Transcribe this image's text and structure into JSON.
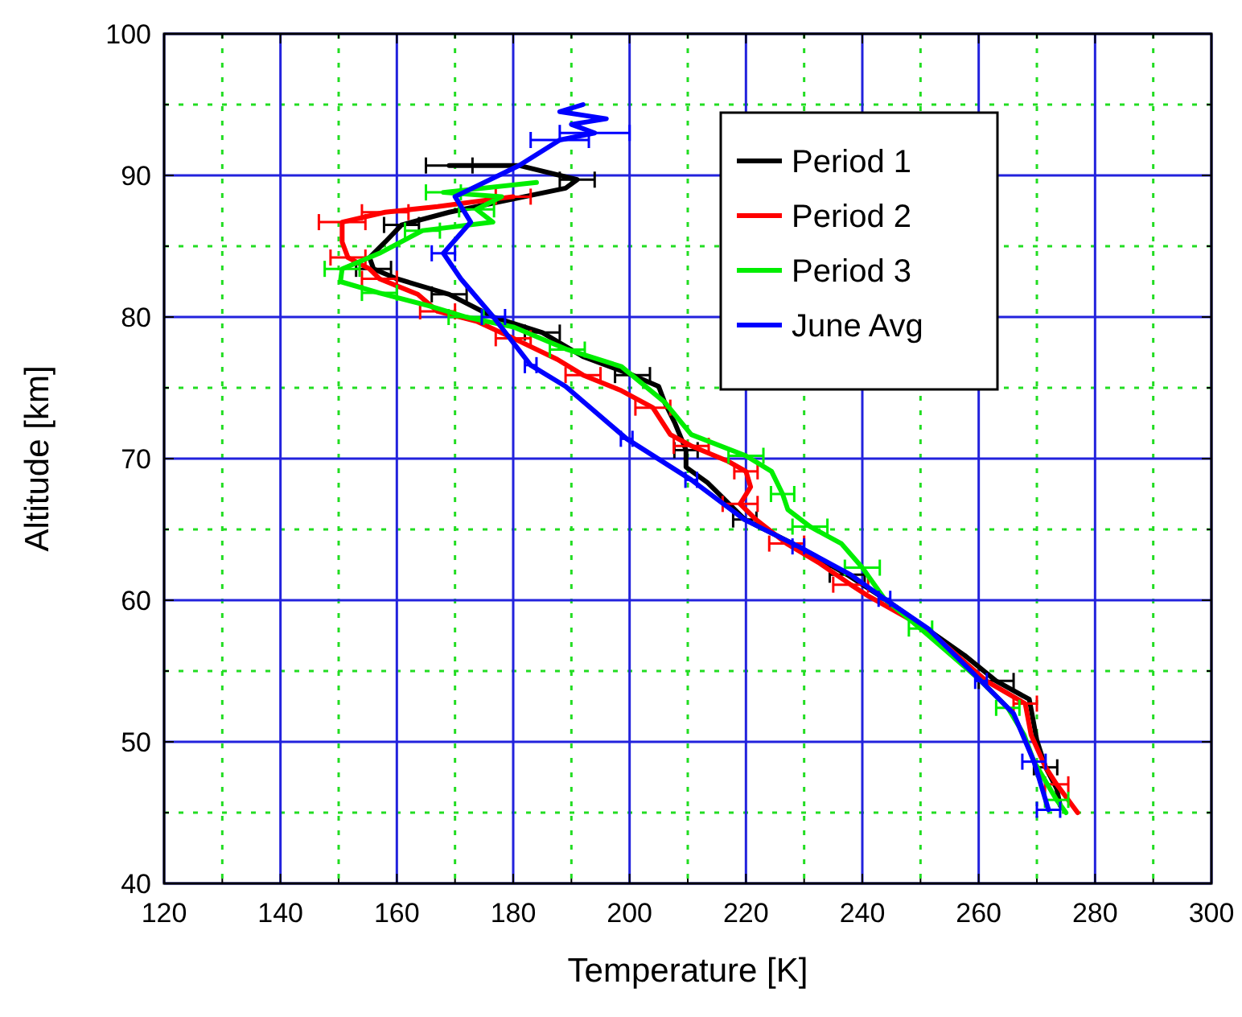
{
  "chart_data": {
    "type": "line",
    "xlabel": "Temperature [K]",
    "ylabel": "Altitude [km]",
    "xlim": [
      120,
      300
    ],
    "xticks": [
      120,
      {
        "value": 130,
        "label": null
      },
      140,
      {
        "value": 150,
        "label": null
      },
      160,
      {
        "value": 170,
        "label": null
      },
      180,
      {
        "value": 190,
        "label": null
      },
      200,
      {
        "value": 210,
        "label": null
      },
      220,
      {
        "value": 230,
        "label": null
      },
      240,
      {
        "value": 250,
        "label": null
      },
      260,
      {
        "value": 270,
        "label": null
      },
      280,
      {
        "value": 290,
        "label": null
      },
      300
    ],
    "ylim": [
      40,
      100
    ],
    "yticks": [
      40,
      {
        "value": 45,
        "label": null
      },
      50,
      {
        "value": 55,
        "label": null
      },
      60,
      {
        "value": 65,
        "label": null
      },
      70,
      {
        "value": 75,
        "label": null
      },
      80,
      {
        "value": 85,
        "label": null
      },
      90,
      {
        "value": 95,
        "label": null
      },
      100
    ],
    "grid": true,
    "legend": "top right",
    "line_style": "solid",
    "marker": "none",
    "series": [
      {
        "name": "Period 1",
        "color": "#000000",
        "x": [
          169,
          181,
          191,
          189,
          169,
          160.8,
          158,
          155.3,
          156,
          160,
          169,
          176.6,
          185,
          192,
          200.5,
          205,
          206,
          207.8,
          209.7,
          209.7,
          213.4,
          219.8,
          229,
          237.4,
          243.8,
          251,
          257.6,
          263,
          268.7,
          270,
          271.5,
          273.4,
          274
        ],
        "values": [
          90.7,
          90.7,
          89.7,
          89.1,
          87.4,
          86.5,
          85.3,
          84.2,
          83.4,
          82.7,
          81.6,
          80,
          78.9,
          77.2,
          75.9,
          75.1,
          74,
          72.5,
          70.6,
          69.4,
          68.3,
          65.7,
          63.8,
          61.8,
          60.1,
          58,
          56.1,
          54.3,
          53,
          50.1,
          48.2,
          46.7,
          45.5
        ],
        "xerrors": [
          4,
          null,
          3,
          null,
          null,
          3,
          null,
          null,
          3,
          null,
          3,
          null,
          3,
          null,
          3,
          null,
          null,
          null,
          2,
          null,
          null,
          2,
          null,
          3,
          null,
          null,
          null,
          3,
          null,
          null,
          2,
          null,
          null
        ]
      },
      {
        "name": "Period 2",
        "color": "#ff0000",
        "x": [
          180,
          167,
          158,
          150.6,
          150.6,
          151.6,
          155.3,
          157,
          163.6,
          167,
          173.7,
          180,
          187.6,
          192,
          198.6,
          204,
          207,
          210.6,
          217,
          220,
          220.8,
          219,
          221.7,
          227,
          232.7,
          238,
          241,
          251,
          261.3,
          268,
          269,
          271.5,
          273.4,
          277
        ],
        "values": [
          88.5,
          87.8,
          87.4,
          86.7,
          85.3,
          84.2,
          83.4,
          82.7,
          81.6,
          80.4,
          79.7,
          78.5,
          77,
          75.9,
          74.8,
          73.6,
          71.7,
          70.9,
          69.8,
          69.1,
          68,
          66.8,
          65.7,
          64,
          62.6,
          61.1,
          60.3,
          58,
          54.3,
          52.7,
          50.5,
          48.2,
          47,
          45
        ],
        "xerrors": [
          3,
          null,
          4,
          4,
          null,
          3,
          null,
          3,
          null,
          3,
          null,
          3,
          null,
          3,
          null,
          3,
          null,
          3,
          null,
          2,
          null,
          3,
          null,
          3,
          null,
          3,
          null,
          null,
          null,
          2,
          null,
          null,
          2,
          null
        ]
      },
      {
        "name": "Period 3",
        "color": "#00ee00",
        "x": [
          184,
          168,
          178,
          173.7,
          176.5,
          164.4,
          157,
          150.6,
          150.3,
          157,
          165.4,
          171.9,
          180,
          189.3,
          198.6,
          206,
          210.6,
          220,
          224.4,
          226.3,
          227.2,
          231,
          236.4,
          240,
          243.8,
          250,
          260.4,
          265,
          267.8,
          269.5,
          273.4,
          275
        ],
        "values": [
          89.5,
          88.8,
          88.5,
          87.6,
          86.7,
          86.1,
          84.5,
          83.4,
          82.5,
          81.7,
          80.8,
          80,
          79.3,
          77.7,
          76.5,
          74,
          71.7,
          70.2,
          69.1,
          67.5,
          66.4,
          65.2,
          64,
          62.3,
          60.1,
          58,
          54.3,
          52.4,
          50.5,
          48.6,
          45.9,
          45
        ],
        "xerrors": [
          null,
          3,
          null,
          3,
          null,
          3,
          null,
          3,
          null,
          3,
          null,
          3,
          null,
          3,
          null,
          null,
          null,
          3,
          null,
          2,
          null,
          3,
          null,
          3,
          null,
          2,
          null,
          2,
          null,
          null,
          2,
          null
        ]
      },
      {
        "name": "June Avg",
        "color": "#0000ff",
        "x": [
          192,
          188,
          196,
          190,
          194,
          188,
          181,
          170,
          172.7,
          168,
          171,
          176.6,
          183,
          189,
          199.5,
          210.6,
          219.7,
          229,
          238,
          243.8,
          251.3,
          260.4,
          266,
          269.5,
          272
        ],
        "values": [
          95,
          94.5,
          94,
          93.6,
          93,
          92.5,
          90.7,
          88.5,
          86.7,
          84.5,
          82.7,
          80,
          76.6,
          75.1,
          71.4,
          68.5,
          65.7,
          63.8,
          61.8,
          60.1,
          58,
          54.3,
          52,
          48.6,
          45.2
        ],
        "xerrors": [
          null,
          null,
          null,
          null,
          6,
          5,
          null,
          null,
          null,
          2,
          null,
          2,
          1,
          null,
          1,
          1,
          null,
          1,
          null,
          1,
          null,
          1,
          null,
          2,
          2
        ]
      }
    ]
  }
}
